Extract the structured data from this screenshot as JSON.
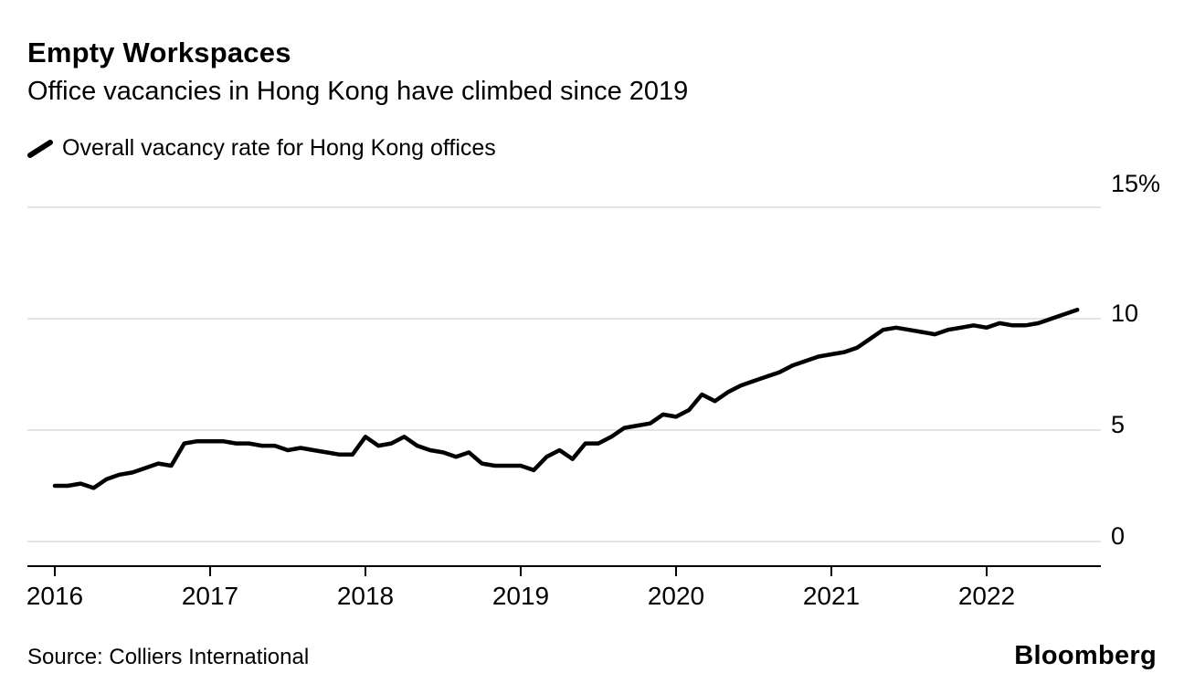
{
  "header": {
    "title": "Empty Workspaces",
    "subtitle": "Office vacancies in Hong Kong have climbed since 2019"
  },
  "legend": {
    "label": "Overall vacancy rate for Hong Kong offices"
  },
  "footer": {
    "source": "Source: Colliers International",
    "brand": "Bloomberg"
  },
  "chart_data": {
    "type": "line",
    "title": "Empty Workspaces",
    "subtitle": "Office vacancies in Hong Kong have climbed since 2019",
    "series_name": "Overall vacancy rate for Hong Kong offices",
    "unit": "%",
    "frequency": "monthly",
    "x_start": "2016-01",
    "x_end": "2022-08",
    "values": [
      2.5,
      2.5,
      2.6,
      2.4,
      2.8,
      3.0,
      3.1,
      3.3,
      3.5,
      3.4,
      4.4,
      4.5,
      4.5,
      4.5,
      4.4,
      4.4,
      4.3,
      4.3,
      4.1,
      4.2,
      4.1,
      4.0,
      3.9,
      3.9,
      4.7,
      4.3,
      4.4,
      4.7,
      4.3,
      4.1,
      4.0,
      3.8,
      4.0,
      3.5,
      3.4,
      3.4,
      3.4,
      3.2,
      3.8,
      4.1,
      3.7,
      4.4,
      4.4,
      4.7,
      5.1,
      5.2,
      5.3,
      5.7,
      5.6,
      5.9,
      6.6,
      6.3,
      6.7,
      7.0,
      7.2,
      7.4,
      7.6,
      7.9,
      8.1,
      8.3,
      8.4,
      8.5,
      8.7,
      9.1,
      9.5,
      9.6,
      9.5,
      9.4,
      9.3,
      9.5,
      9.6,
      9.7,
      9.6,
      9.8,
      9.7,
      9.7,
      9.8,
      10.0,
      10.2,
      10.4
    ],
    "x_tick_labels": [
      "2016",
      "2017",
      "2018",
      "2019",
      "2020",
      "2021",
      "2022"
    ],
    "y_ticks": [
      0,
      5,
      10,
      15
    ],
    "y_tick_labels": [
      "0",
      "5",
      "10",
      "15%"
    ],
    "ylim": [
      0,
      15
    ],
    "grid": "horizontal",
    "legend_position": "top-left",
    "line_color": "#000000",
    "grid_color": "#dcdcdc",
    "axis_color": "#000000"
  }
}
